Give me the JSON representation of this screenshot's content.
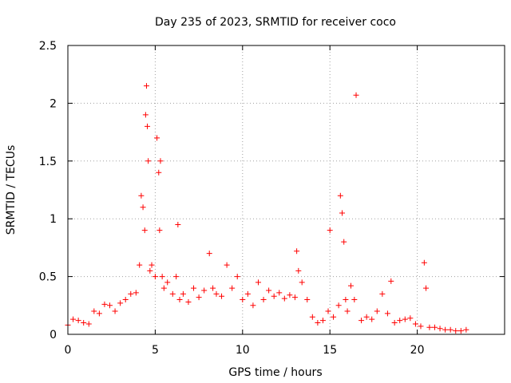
{
  "chart_data": {
    "type": "scatter",
    "title": "Day 235 of 2023, SRMTID for receiver coco",
    "xlabel": "GPS time / hours",
    "ylabel": "SRMTID / TECUs",
    "xlim": [
      0,
      25
    ],
    "ylim": [
      0,
      2.5
    ],
    "x_ticks": [
      0,
      5,
      10,
      15,
      20
    ],
    "y_ticks": [
      0,
      0.5,
      1,
      1.5,
      2,
      2.5
    ],
    "x_tick_labels": [
      "0",
      "5",
      "10",
      "15",
      "20"
    ],
    "y_tick_labels": [
      "0",
      "0.5",
      "1",
      "1.5",
      "2",
      "2.5"
    ],
    "grid": true,
    "marker": "+",
    "series": [
      {
        "name": "SRMTID",
        "color": "#ff0000",
        "x": [
          0.0,
          0.3,
          0.6,
          0.9,
          1.2,
          1.5,
          1.8,
          2.1,
          2.4,
          2.7,
          3.0,
          3.3,
          3.6,
          3.9,
          4.1,
          4.2,
          4.3,
          4.4,
          4.45,
          4.5,
          4.55,
          4.6,
          4.7,
          4.8,
          5.0,
          5.1,
          5.2,
          5.25,
          5.3,
          5.4,
          5.5,
          5.7,
          6.0,
          6.2,
          6.3,
          6.4,
          6.6,
          6.9,
          7.2,
          7.5,
          7.8,
          8.1,
          8.3,
          8.5,
          8.8,
          9.1,
          9.4,
          9.7,
          10.0,
          10.3,
          10.6,
          10.9,
          11.2,
          11.5,
          11.8,
          12.1,
          12.4,
          12.7,
          13.0,
          13.1,
          13.2,
          13.4,
          13.7,
          14.0,
          14.3,
          14.6,
          14.9,
          15.0,
          15.2,
          15.5,
          15.6,
          15.7,
          15.8,
          15.9,
          16.0,
          16.2,
          16.4,
          16.5,
          16.8,
          17.1,
          17.4,
          17.7,
          18.0,
          18.3,
          18.5,
          18.7,
          19.0,
          19.3,
          19.6,
          19.9,
          20.2,
          20.4,
          20.5,
          20.7,
          21.0,
          21.3,
          21.6,
          21.9,
          22.2,
          22.5,
          22.8
        ],
        "y": [
          0.08,
          0.13,
          0.12,
          0.1,
          0.09,
          0.2,
          0.18,
          0.26,
          0.25,
          0.2,
          0.27,
          0.3,
          0.35,
          0.36,
          0.6,
          1.2,
          1.1,
          0.9,
          1.9,
          2.15,
          1.8,
          1.5,
          0.55,
          0.6,
          0.5,
          1.7,
          1.4,
          0.9,
          1.5,
          0.5,
          0.4,
          0.45,
          0.35,
          0.5,
          0.95,
          0.3,
          0.35,
          0.28,
          0.4,
          0.32,
          0.38,
          0.7,
          0.4,
          0.35,
          0.33,
          0.6,
          0.4,
          0.5,
          0.3,
          0.35,
          0.25,
          0.45,
          0.3,
          0.38,
          0.33,
          0.36,
          0.31,
          0.34,
          0.32,
          0.72,
          0.55,
          0.45,
          0.3,
          0.15,
          0.1,
          0.12,
          0.2,
          0.9,
          0.15,
          0.25,
          1.2,
          1.05,
          0.8,
          0.3,
          0.2,
          0.42,
          0.3,
          2.07,
          0.12,
          0.15,
          0.13,
          0.2,
          0.35,
          0.18,
          0.46,
          0.1,
          0.12,
          0.13,
          0.14,
          0.09,
          0.07,
          0.62,
          0.4,
          0.06,
          0.06,
          0.05,
          0.04,
          0.04,
          0.03,
          0.03,
          0.04
        ]
      }
    ]
  }
}
